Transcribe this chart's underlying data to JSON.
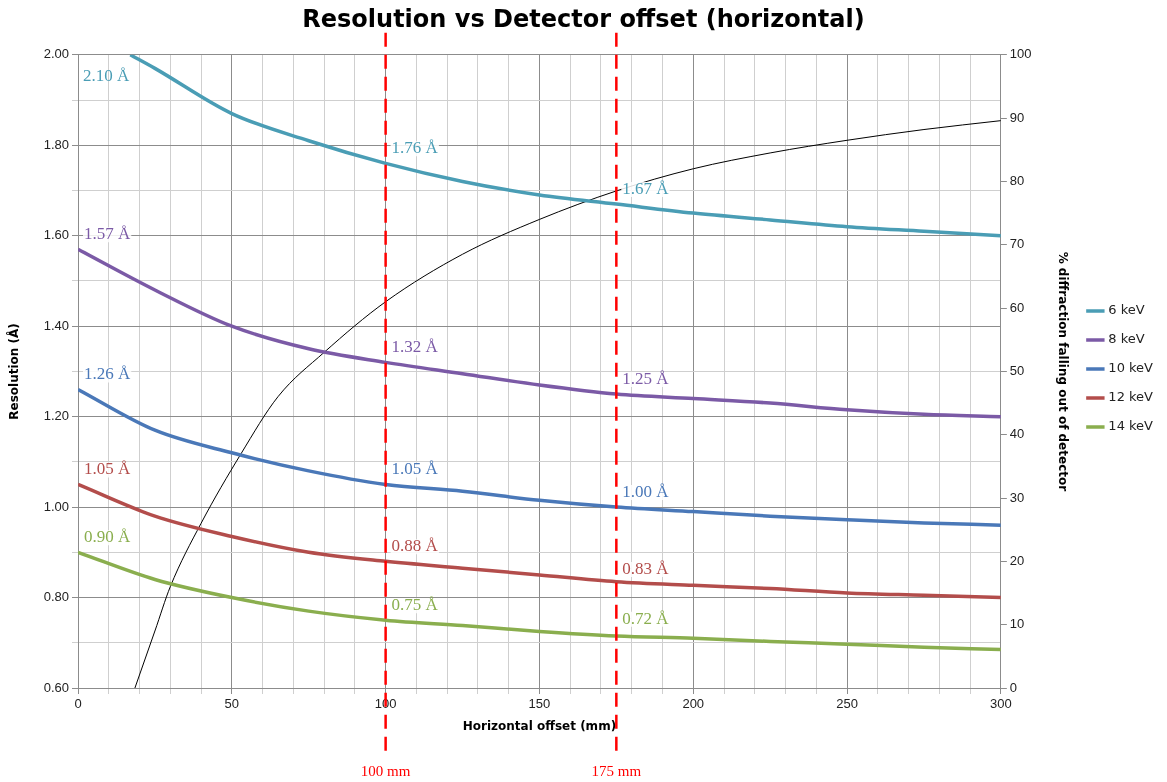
{
  "chart_data": {
    "type": "line",
    "title": "Resolution vs Detector offset (horizontal)",
    "xlabel": "Horizontal offset (mm)",
    "ylabel": "Resolution (Å)",
    "y2label": "% diffraction falling out of detector",
    "x": [
      0,
      25,
      50,
      75,
      100,
      125,
      150,
      175,
      200,
      225,
      250,
      275,
      300
    ],
    "series": [
      {
        "name": "6 keV",
        "color": "#4a9db5",
        "x": [
          17,
          25,
          50,
          75,
          100,
          125,
          150,
          175,
          200,
          225,
          250,
          275,
          300
        ],
        "values": [
          2.0,
          1.97,
          1.87,
          1.81,
          1.76,
          1.72,
          1.69,
          1.67,
          1.65,
          1.635,
          1.62,
          1.61,
          1.6
        ]
      },
      {
        "name": "8 keV",
        "color": "#7b5aa6",
        "values": [
          1.57,
          1.48,
          1.4,
          1.35,
          1.32,
          1.295,
          1.27,
          1.25,
          1.24,
          1.23,
          1.215,
          1.205,
          1.2
        ]
      },
      {
        "name": "10 keV",
        "color": "#4a78b8",
        "values": [
          1.26,
          1.17,
          1.12,
          1.08,
          1.05,
          1.035,
          1.015,
          1.0,
          0.99,
          0.98,
          0.972,
          0.965,
          0.96
        ]
      },
      {
        "name": "12 keV",
        "color": "#b34d4b",
        "values": [
          1.05,
          0.98,
          0.935,
          0.9,
          0.88,
          0.865,
          0.85,
          0.835,
          0.827,
          0.82,
          0.81,
          0.805,
          0.8
        ]
      },
      {
        "name": "14 keV",
        "color": "#8aae4e",
        "values": [
          0.9,
          0.84,
          0.8,
          0.77,
          0.75,
          0.738,
          0.725,
          0.715,
          0.71,
          0.703,
          0.697,
          0.69,
          0.685
        ]
      },
      {
        "color": "#000000",
        "axis": "y2",
        "x": [
          18.5,
          25,
          30,
          40,
          53,
          65,
          80,
          100,
          125,
          150,
          175,
          200,
          225,
          250,
          275,
          300
        ],
        "values": [
          0,
          9,
          16,
          26,
          37,
          46,
          53,
          61,
          68.5,
          74,
          78.5,
          82,
          84.5,
          86.5,
          88.2,
          89.6
        ]
      }
    ],
    "xlim": [
      0,
      300
    ],
    "xticks": [
      0,
      {
        "value": 10,
        "label": null
      },
      {
        "value": 20,
        "label": null
      },
      {
        "value": 30,
        "label": null
      },
      {
        "value": 40,
        "label": null
      },
      50,
      {
        "value": 60,
        "label": null
      },
      {
        "value": 70,
        "label": null
      },
      {
        "value": 80,
        "label": null
      },
      {
        "value": 90,
        "label": null
      },
      100,
      {
        "value": 110,
        "label": null
      },
      {
        "value": 120,
        "label": null
      },
      {
        "value": 130,
        "label": null
      },
      {
        "value": 140,
        "label": null
      },
      150,
      {
        "value": 160,
        "label": null
      },
      {
        "value": 170,
        "label": null
      },
      {
        "value": 180,
        "label": null
      },
      {
        "value": 190,
        "label": null
      },
      200,
      {
        "value": 210,
        "label": null
      },
      {
        "value": 220,
        "label": null
      },
      {
        "value": 230,
        "label": null
      },
      {
        "value": 240,
        "label": null
      },
      250,
      {
        "value": 260,
        "label": null
      },
      {
        "value": 270,
        "label": null
      },
      {
        "value": 280,
        "label": null
      },
      {
        "value": 290,
        "label": null
      },
      300
    ],
    "ylim": [
      0.6,
      2.0
    ],
    "yticks": [
      {
        "value": 0.6,
        "label": "0.60"
      },
      {
        "value": 0.7,
        "label": null
      },
      {
        "value": 0.8,
        "label": "0.80"
      },
      {
        "value": 0.9,
        "label": null
      },
      {
        "value": 1.0,
        "label": "1.00"
      },
      {
        "value": 1.1,
        "label": null
      },
      {
        "value": 1.2,
        "label": "1.20"
      },
      {
        "value": 1.3,
        "label": null
      },
      {
        "value": 1.4,
        "label": "1.40"
      },
      {
        "value": 1.5,
        "label": null
      },
      {
        "value": 1.6,
        "label": "1.60"
      },
      {
        "value": 1.7,
        "label": null
      },
      {
        "value": 1.8,
        "label": "1.80"
      },
      {
        "value": 1.9,
        "label": null
      },
      {
        "value": 2.0,
        "label": "2.00"
      }
    ],
    "y2lim": [
      0,
      100
    ],
    "y2ticks": [
      0,
      10,
      20,
      30,
      40,
      50,
      60,
      70,
      80,
      90,
      100
    ],
    "ref_lines": [
      {
        "axis": "x",
        "value": 100,
        "label": "100 mm",
        "color": "#ff0000",
        "line_style": "dashed"
      },
      {
        "axis": "x",
        "value": 175,
        "label": "175 mm",
        "color": "#ff0000",
        "line_style": "dashed"
      }
    ],
    "annotations": [
      "2.10 Å",
      {
        "text": "1.76 Å",
        "x": 100,
        "y": 1.76
      },
      {
        "text": "1.67 Å",
        "x": 175,
        "y": 1.67
      },
      {
        "text": "1.57 Å",
        "x": 0,
        "y": 1.57
      },
      {
        "text": "1.32 Å",
        "x": 100,
        "y": 1.32
      },
      {
        "text": "1.25 Å",
        "x": 175,
        "y": 1.25
      },
      {
        "text": "1.26 Å",
        "x": 0,
        "y": 1.26
      },
      {
        "text": "1.05 Å",
        "x": 100,
        "y": 1.05
      },
      {
        "text": "1.00 Å",
        "x": 175,
        "y": 1.0
      },
      {
        "text": "1.05 Å",
        "x": 0,
        "y": 1.05
      },
      {
        "text": "0.88 Å",
        "x": 100,
        "y": 0.88
      },
      {
        "text": "0.83 Å",
        "x": 175,
        "y": 0.83
      },
      {
        "text": "0.90 Å",
        "x": 0,
        "y": 0.9
      },
      {
        "text": "0.75 Å",
        "x": 100,
        "y": 0.75
      },
      {
        "text": "0.72 Å",
        "x": 175,
        "y": 0.72
      }
    ],
    "grid": true,
    "legend": "right",
    "marker": "none",
    "line_style": "solid"
  }
}
